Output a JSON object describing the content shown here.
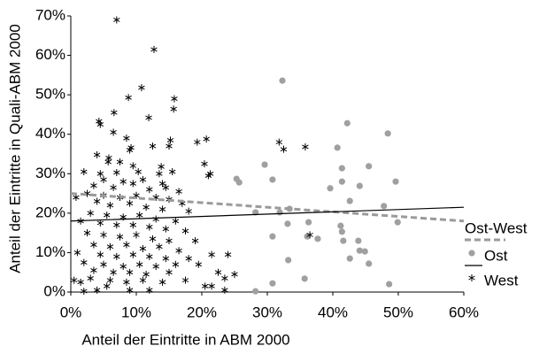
{
  "chart_data": {
    "type": "scatter",
    "x_label": "Anteil der Eintritte in ABM 2000",
    "y_label": "Anteil der Eintritte in Quali-ABM 2000",
    "xlim": [
      0,
      60
    ],
    "ylim": [
      0,
      70
    ],
    "xticks": [
      {
        "value": 0,
        "label": "0%"
      },
      {
        "value": 10,
        "label": "10%"
      },
      {
        "value": 20,
        "label": "20%"
      },
      {
        "value": 30,
        "label": "30%"
      },
      {
        "value": 40,
        "label": "40%"
      },
      {
        "value": 50,
        "label": "50%"
      },
      {
        "value": 60,
        "label": "60%"
      }
    ],
    "yticks": [
      {
        "value": 0,
        "label": "0%"
      },
      {
        "value": 10,
        "label": "10%"
      },
      {
        "value": 20,
        "label": "20%"
      },
      {
        "value": 30,
        "label": "30%"
      },
      {
        "value": 40,
        "label": "40%"
      },
      {
        "value": 50,
        "label": "50%"
      },
      {
        "value": 60,
        "label": "60%"
      },
      {
        "value": 70,
        "label": "70%"
      }
    ],
    "series": [
      {
        "name": "Ost",
        "marker": "dot",
        "color": "#a0a0a0",
        "x": [
          32.3,
          42.2,
          48.4,
          40.7,
          29.6,
          41.4,
          45.5,
          25.7,
          30.8,
          25.3,
          41.4,
          39.6,
          44.1,
          49.6,
          42.6,
          47.8,
          33.4,
          28.2,
          31.9,
          36.3,
          41.2,
          49.9,
          33.1,
          30.8,
          36.1,
          41.4,
          37.7,
          41.6,
          43.9,
          44.1,
          42.6,
          33.2,
          44.9,
          45.5,
          35.7,
          30.8,
          48.6,
          28.2
        ],
        "values": [
          53.6,
          42.8,
          40.2,
          36.6,
          32.3,
          31.4,
          31.9,
          27.8,
          28.5,
          28.7,
          28,
          26.3,
          26.9,
          28,
          23.1,
          21.8,
          21.1,
          20.2,
          20.2,
          17.7,
          16.8,
          17.7,
          17.3,
          14.1,
          14.1,
          15.3,
          13.5,
          13,
          13,
          10.5,
          8.5,
          8.1,
          10.3,
          7.2,
          3.4,
          2.2,
          2,
          0.2
        ]
      },
      {
        "name": "West",
        "marker": "asterisk",
        "color": "#000000",
        "x": [
          7,
          12.7,
          10.8,
          8.8,
          15.8,
          15.7,
          6.6,
          4.3,
          4.5,
          11.9,
          6.5,
          8.5,
          15.2,
          15,
          20.7,
          19.3,
          31.8,
          35.8,
          32.5,
          9.2,
          9,
          12.5,
          4,
          5.8,
          5.7,
          7.5,
          9.5,
          13.8,
          20.4,
          2,
          4.5,
          7,
          10.3,
          13.5,
          15.5,
          21.3,
          21,
          5,
          8,
          11,
          14,
          3.5,
          6.5,
          9.5,
          12,
          14.5,
          16.5,
          2.5,
          5,
          7.5,
          10,
          13,
          15,
          17,
          0.8,
          4,
          6,
          9,
          11.5,
          14,
          18,
          3,
          5.5,
          8,
          10.5,
          13,
          16,
          1.5,
          4.5,
          7,
          9.5,
          12,
          14.5,
          17.5,
          2.5,
          5,
          7.5,
          10,
          12.5,
          15,
          19,
          3.5,
          6,
          8.5,
          11,
          13.5,
          16.5,
          1,
          4.5,
          7,
          9.5,
          12,
          14.5,
          18,
          21.5,
          2,
          5,
          8,
          10.5,
          13,
          16,
          19.5,
          3.5,
          6.5,
          9,
          11.5,
          15,
          24,
          22.5,
          3,
          6,
          8.5,
          11,
          14,
          17.5,
          20.5,
          21.5,
          23.5,
          25,
          0.5,
          1.5,
          5.5,
          9,
          12,
          2,
          4,
          23.5,
          36.5
        ],
        "values": [
          69,
          61.5,
          51.8,
          49.3,
          49,
          46.4,
          45.5,
          43.3,
          42.5,
          44.2,
          40.5,
          39,
          38.5,
          37,
          38.8,
          38,
          38,
          36.8,
          36.2,
          36.6,
          36,
          37,
          34.8,
          34,
          33,
          33,
          32,
          31.8,
          32.5,
          30.5,
          30,
          30.3,
          30.5,
          30,
          30.5,
          30,
          29.5,
          28.5,
          28,
          28.5,
          27.5,
          27,
          26.5,
          27.5,
          26,
          26.5,
          25.5,
          25,
          24.5,
          24,
          24.5,
          24,
          23.5,
          22.5,
          24,
          23,
          22,
          22.5,
          21.5,
          21,
          20.5,
          20,
          19.5,
          19,
          19.5,
          18.5,
          18,
          18,
          17.5,
          17,
          17,
          16.5,
          16,
          15.5,
          15,
          14.5,
          14,
          14.5,
          13.5,
          13,
          13,
          12,
          11.5,
          12,
          11,
          11.5,
          10.5,
          10,
          9.5,
          9,
          9.5,
          9,
          8.5,
          8.5,
          9.5,
          7.5,
          7,
          6.5,
          7,
          6.5,
          7,
          7,
          5.5,
          5,
          5,
          4.5,
          5,
          9.5,
          5,
          3.5,
          3,
          2.5,
          3,
          2.5,
          3,
          1.5,
          1.5,
          3.5,
          4.5,
          3,
          2.5,
          1.5,
          0.5,
          0.5,
          0.2,
          0.5,
          0.5,
          14.5
        ]
      }
    ],
    "lines": [
      {
        "name": "Ost-West",
        "style": "dashed",
        "color": "#9a9a9a",
        "x": [
          0,
          60
        ],
        "values": [
          25,
          18
        ]
      },
      {
        "style": "solid",
        "color": "#000000",
        "x": [
          0,
          60
        ],
        "values": [
          18,
          21.5
        ]
      }
    ]
  }
}
